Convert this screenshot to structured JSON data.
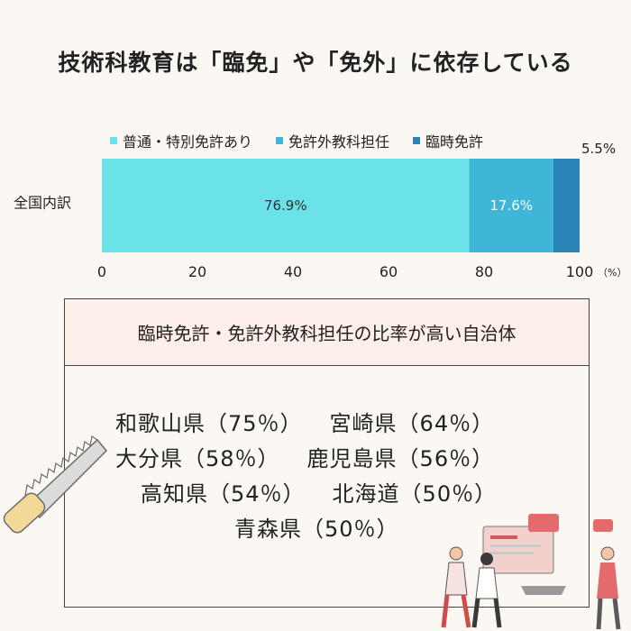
{
  "title": "技術科教育は「臨免」や「免外」に依存している",
  "chart_data": {
    "type": "bar",
    "orientation": "horizontal",
    "stacked": true,
    "categories": [
      "全国内訳"
    ],
    "series": [
      {
        "name": "普通・特別免許あり",
        "values": [
          76.9
        ],
        "color": "#6ae2e8",
        "label": "76.9%"
      },
      {
        "name": "免許外教科担任",
        "values": [
          17.6
        ],
        "color": "#3fb6d8",
        "label": "17.6%"
      },
      {
        "name": "臨時免許",
        "values": [
          5.5
        ],
        "color": "#2a86b8",
        "label": "5.5%"
      }
    ],
    "xlim": [
      0,
      100
    ],
    "x_ticks": [
      "0",
      "20",
      "40",
      "60",
      "80",
      "100"
    ],
    "x_unit": "（%）",
    "legend_position": "top",
    "grid": false
  },
  "panel": {
    "heading": "臨時免許・免許外教科担任の比率が高い自治体",
    "rows": [
      [
        "和歌山県（75％）",
        "宮崎県（64％）"
      ],
      [
        "大分県（58％）",
        "鹿児島県（56％）"
      ],
      [
        "高知県（54％）",
        "北海道（50％）"
      ],
      [
        "青森県（50％）"
      ]
    ]
  }
}
